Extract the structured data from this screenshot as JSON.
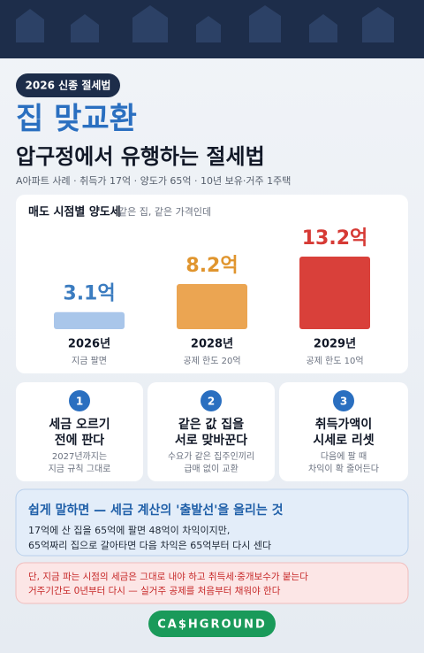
{
  "badge": "2026 신종 절세법",
  "title": "집 맞교환",
  "subtitle": "압구정에서 유행하는 절세법",
  "caption": "A아파트 사례 · 취득가 17억 · 양도가 65억 · 10년 보유·거주 1주택",
  "chart_data": {
    "type": "bar",
    "title": "매도 시점별 양도세",
    "subtitle": "같은 집, 같은 가격인데",
    "categories": [
      "2026년",
      "2028년",
      "2029년"
    ],
    "sublabels": [
      "지금 팔면",
      "공제 한도 20억",
      "공제 한도 10억"
    ],
    "values": [
      3.1,
      8.2,
      13.2
    ],
    "value_labels": [
      "3.1억",
      "8.2억",
      "13.2억"
    ],
    "colors": [
      "#a9c6ea",
      "#eba552",
      "#d9403a"
    ],
    "label_colors": [
      "#3b7cc0",
      "#e0952e",
      "#d63a35"
    ]
  },
  "steps": [
    {
      "number": 1,
      "title": [
        "세금 오르기",
        "전에 판다"
      ],
      "note": [
        "2027년까지는",
        "지금 규칙 그대로"
      ]
    },
    {
      "number": 2,
      "title": [
        "같은 값 집을",
        "서로 맞바꾼다"
      ],
      "note": [
        "수요가 같은 집주인끼리",
        "급매 없이 교환"
      ]
    },
    {
      "number": 3,
      "title": [
        "취득가액이",
        "시세로 리셋"
      ],
      "note": [
        "다음에 팔 때",
        "차익이 확 줄어든다"
      ]
    }
  ],
  "summary": {
    "title": "쉽게 말하면 — 세금 계산의 '출발선'을 올리는 것",
    "lines": [
      "17억에 산 집을 65억에 팔면 48억이 차익이지만,",
      "65억짜리 집으로 갈아타면 다음 차익은 65억부터 다시 센다"
    ]
  },
  "warning": [
    "단, 지금 파는 시점의 세금은 그대로 내야 하고 취득세·중개보수가 붙는다",
    "거주기간도 0년부터 다시 — 실거주 공제를 처음부터 채워야 한다"
  ],
  "brand": "CA$HGROUND"
}
